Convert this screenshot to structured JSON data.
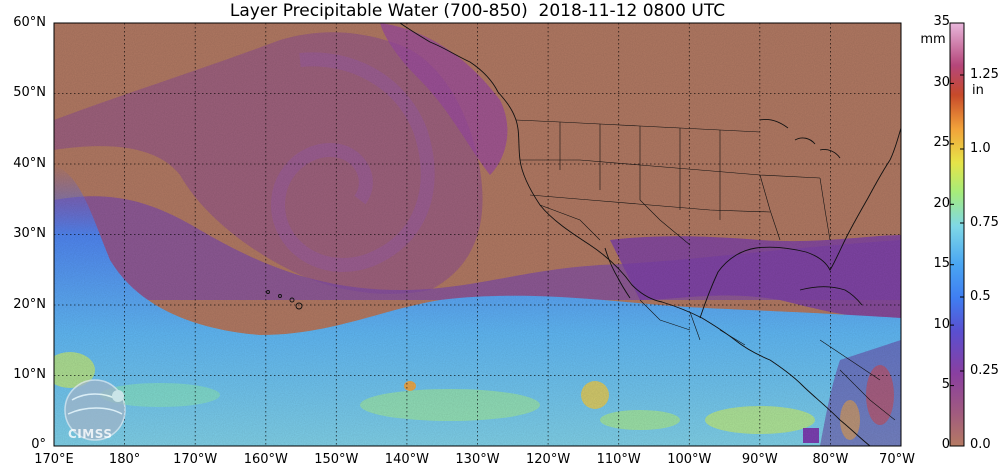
{
  "title": "Layer Precipitable Water (700-850)  2018-11-12 0800 UTC",
  "lat_labels": [
    "60°N",
    "50°N",
    "40°N",
    "30°N",
    "20°N",
    "10°N",
    "0°"
  ],
  "lon_labels": [
    "170°E",
    "180°",
    "170°W",
    "160°W",
    "150°W",
    "140°W",
    "130°W",
    "120°W",
    "110°W",
    "100°W",
    "90°W",
    "80°W",
    "70°W"
  ],
  "colorbar": {
    "mm_label": "mm",
    "in_label": "in",
    "mm_ticks": [
      "35",
      "30",
      "25",
      "20",
      "15",
      "10",
      "5",
      "0"
    ],
    "in_ticks": [
      "1.25",
      "1.0",
      "0.75",
      "0.5",
      "0.25",
      "0.0"
    ],
    "colors": [
      "#b57a63",
      "#9a4f8d",
      "#7e3fa8",
      "#5a67e6",
      "#4a9cf2",
      "#6fd6e8",
      "#9ae86a",
      "#e8e04a",
      "#f29a3a",
      "#c44a2a",
      "#d45fb0",
      "#e8b6dd"
    ]
  },
  "logo": {
    "text": "CIMSS"
  },
  "colors": {
    "dry": "#b57a63",
    "moderate": "#8c4a95",
    "moist": "#4a8ef0",
    "wet": "#9ae86a"
  }
}
